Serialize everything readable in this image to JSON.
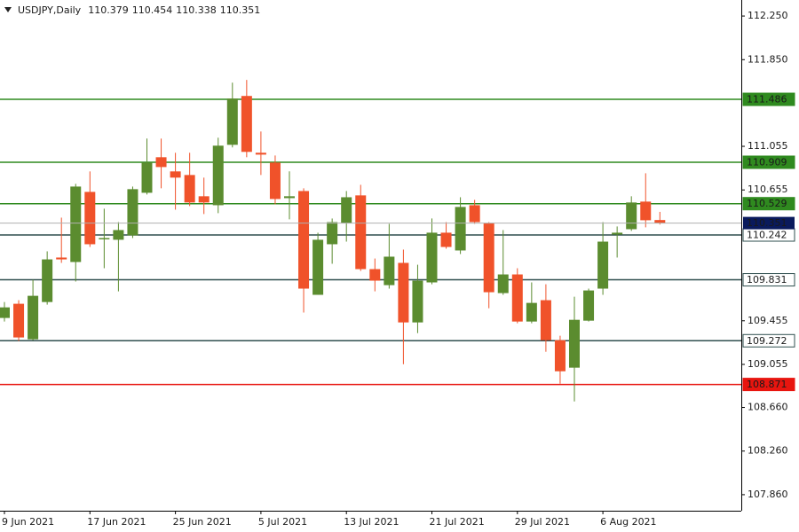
{
  "chart_data": {
    "type": "candlestick",
    "title": "USDJPY,Daily",
    "categories": [
      "9 Jun 2021",
      null,
      null,
      null,
      null,
      null,
      "17 Jun 2021",
      null,
      null,
      null,
      null,
      null,
      "25 Jun 2021",
      null,
      null,
      null,
      null,
      null,
      "5 Jul 2021",
      null,
      null,
      null,
      null,
      null,
      "13 Jul 2021",
      null,
      null,
      null,
      null,
      null,
      "21 Jul 2021",
      null,
      null,
      null,
      null,
      null,
      "29 Jul 2021",
      null,
      null,
      null,
      null,
      null,
      "6 Aug 2021",
      null,
      null,
      null,
      null
    ],
    "open": [
      109.481,
      109.611,
      109.285,
      109.627,
      110.035,
      109.994,
      110.637,
      110.206,
      110.198,
      110.238,
      110.629,
      110.955,
      110.825,
      110.792,
      110.597,
      110.515,
      111.069,
      111.517,
      110.996,
      110.906,
      110.58,
      110.645,
      109.693,
      110.157,
      110.352,
      110.605,
      109.929,
      109.782,
      109.986,
      109.44,
      109.807,
      110.263,
      110.1,
      110.515,
      110.352,
      109.709,
      109.88,
      109.448,
      109.644,
      109.277,
      109.025,
      109.456,
      109.75,
      110.246,
      110.295,
      110.548,
      110.379
    ],
    "high": [
      109.627,
      109.644,
      109.831,
      110.092,
      110.401,
      110.711,
      110.825,
      110.483,
      110.36,
      110.686,
      111.126,
      111.126,
      110.996,
      110.996,
      110.768,
      111.134,
      111.639,
      111.664,
      111.191,
      110.971,
      110.825,
      110.67,
      110.263,
      110.393,
      110.645,
      110.702,
      110.026,
      110.344,
      110.108,
      109.969,
      110.393,
      110.36,
      110.588,
      110.564,
      110.36,
      110.287,
      109.937,
      109.807,
      109.79,
      109.318,
      109.676,
      109.75,
      110.36,
      110.32,
      110.597,
      110.808,
      110.454
    ],
    "low": [
      109.448,
      109.269,
      109.277,
      109.603,
      109.986,
      109.815,
      110.132,
      109.937,
      109.725,
      110.214,
      110.613,
      110.67,
      110.474,
      110.507,
      110.434,
      110.442,
      111.045,
      110.955,
      110.792,
      110.523,
      110.385,
      109.53,
      109.693,
      109.978,
      110.181,
      109.912,
      109.725,
      109.75,
      109.057,
      109.342,
      109.79,
      110.116,
      110.067,
      110.344,
      109.57,
      109.693,
      109.432,
      109.432,
      109.171,
      108.878,
      108.715,
      109.448,
      109.693,
      110.035,
      110.279,
      110.312,
      110.338
    ],
    "close": [
      109.578,
      109.302,
      109.684,
      110.018,
      110.018,
      110.686,
      110.157,
      110.214,
      110.287,
      110.662,
      110.906,
      110.865,
      110.768,
      110.54,
      110.54,
      111.061,
      111.493,
      111.004,
      110.979,
      110.572,
      110.597,
      109.75,
      110.198,
      110.36,
      110.588,
      109.929,
      109.823,
      110.043,
      109.44,
      109.823,
      110.263,
      110.132,
      110.499,
      110.36,
      109.717,
      109.88,
      109.448,
      109.619,
      109.277,
      108.992,
      109.464,
      109.733,
      110.181,
      110.263,
      110.54,
      110.377,
      110.351
    ],
    "up_color": "#5b8c2f",
    "down_color": "#f0522a",
    "ylim": [
      107.713,
      112.397
    ],
    "yticks": [
      {
        "value": 112.25,
        "label": "112.250"
      },
      {
        "value": 111.85,
        "label": "111.850"
      },
      111.055,
      110.655,
      109.455,
      109.055,
      {
        "value": 108.66,
        "label": "108.660"
      },
      {
        "value": 108.26,
        "label": "108.260"
      },
      {
        "value": 107.86,
        "label": "107.860"
      }
    ],
    "levels": [
      {
        "value": 111.486,
        "color": "#2f8a1f",
        "filled": true
      },
      {
        "value": 110.909,
        "color": "#2f8a1f",
        "filled": true
      },
      {
        "value": 110.529,
        "color": "#2f8a1f",
        "filled": true
      },
      {
        "value": 110.242,
        "color": "#2f4f4f",
        "filled": false
      },
      {
        "value": 109.831,
        "color": "#2f4f4f",
        "filled": false
      },
      {
        "value": 109.272,
        "color": "#2f4f4f",
        "filled": false
      },
      {
        "value": 108.871,
        "color": "#e8150f",
        "filled": true
      }
    ],
    "current_price_color": "#0a1a5c"
  }
}
